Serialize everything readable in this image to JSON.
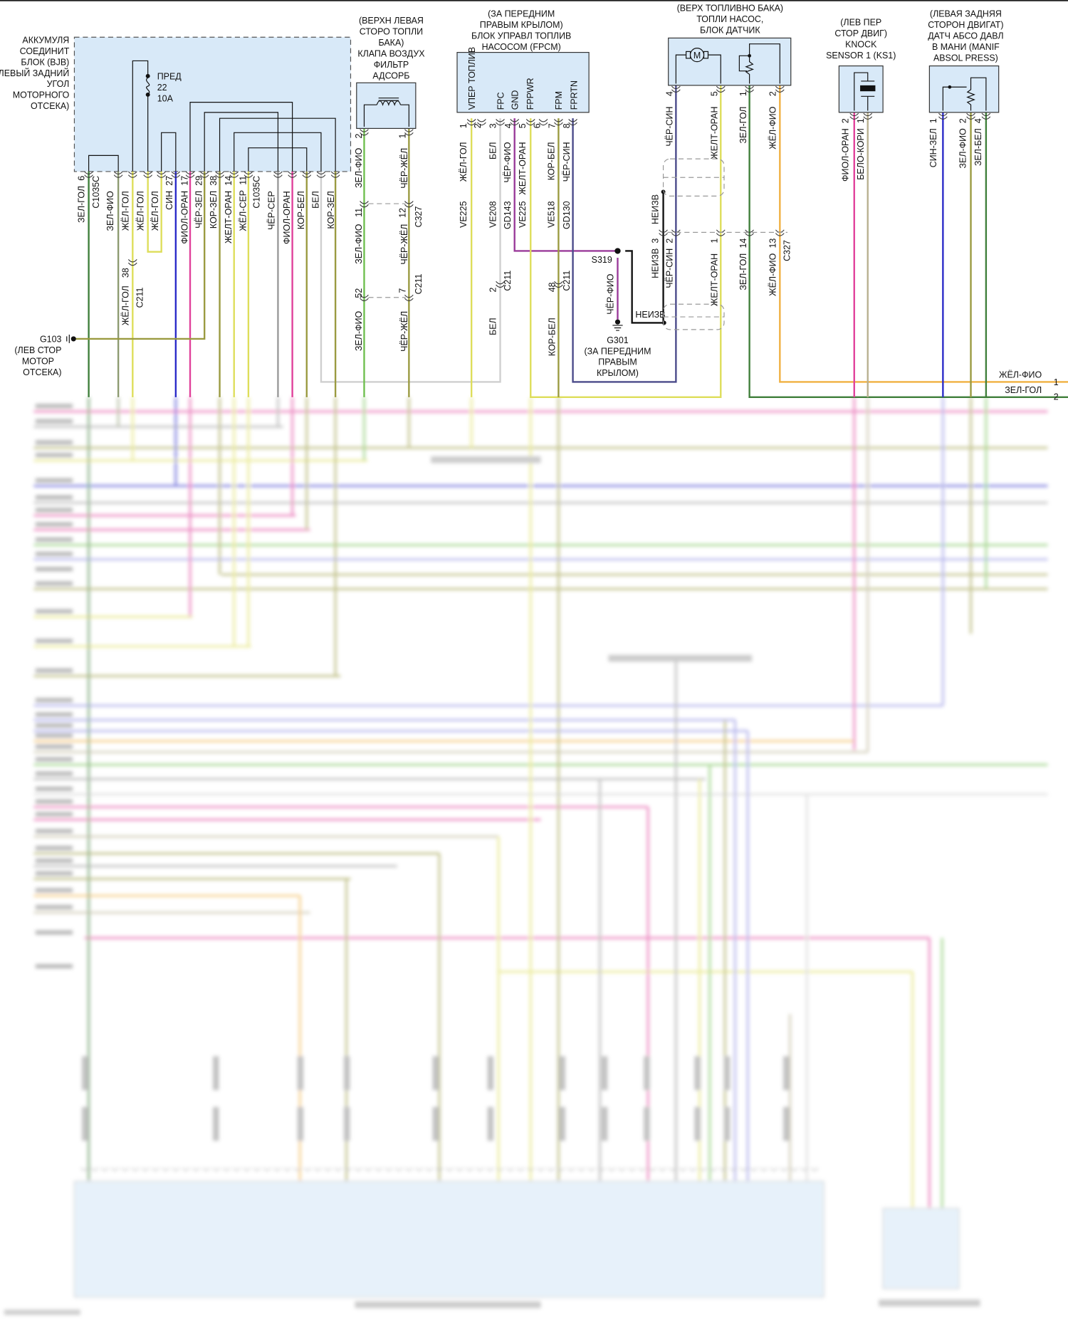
{
  "wire_colors": {
    "green": "#3f7f3a",
    "olivegray": "#8c9a70",
    "yellow": "#dede5a",
    "blue": "#2a2ac8",
    "pink": "#e0409a",
    "olive": "#9a9a40",
    "gray": "#999999",
    "lightgray": "#cfcfcf",
    "purple": "#9a3a9a",
    "darkblue": "#4a4a8a",
    "orange": "#f0b040",
    "tan": "#b8b090",
    "lime": "#6fbf4f",
    "paleblue": "#8a8ae0",
    "black": "#111111"
  },
  "box_fill": "#d8e9f8",
  "bjb": {
    "title_lines": [
      "АККУМУЛЯ",
      "СОЕДИНИТ",
      "БЛОК (BJB)",
      "(ЛЕВЫЙ ЗАДНИЙ",
      "УГОЛ",
      "МОТОРНОГО",
      "ОТСЕКА)"
    ],
    "fuse": [
      "ПРЕД",
      "22",
      "10A"
    ],
    "wires": [
      {
        "wire": "ЗЕЛ-ГОЛ",
        "pin": "6"
      },
      {
        "wire": "C1035C",
        "pin": ""
      },
      {
        "wire": "ЗЕЛ-ФИО",
        "pin": ""
      },
      {
        "wire": "ЖЁЛ-ГОЛ",
        "pin": ""
      },
      {
        "wire": "ЖЁЛ-ГОЛ",
        "pin": ""
      },
      {
        "wire": "ЖЁЛ-ГОЛ",
        "pin": ""
      },
      {
        "wire": "СИН",
        "pin": "27"
      },
      {
        "wire": "ФИОЛ-ОРАН",
        "pin": "17"
      },
      {
        "wire": "ЧЁР-ЗЕЛ",
        "pin": "29"
      },
      {
        "wire": "КОР-ЗЕЛ",
        "pin": "38"
      },
      {
        "wire": "ЖЕЛТ-ОРАН",
        "pin": "14"
      },
      {
        "wire": "ЖЁЛ-СЕР",
        "pin": "11"
      },
      {
        "wire": "C1035C",
        "pin": ""
      },
      {
        "wire": "ЧЁР-СЕР",
        "pin": ""
      },
      {
        "wire": "ФИОЛ-ОРАН",
        "pin": ""
      },
      {
        "wire": "КОР-БЕЛ",
        "pin": ""
      },
      {
        "wire": "БЕЛ",
        "pin": ""
      },
      {
        "wire": "КОР-ЗЕЛ",
        "pin": ""
      }
    ],
    "c211": {
      "pin": "38",
      "connector": "C211",
      "wire": "ЖЁЛ-ГОЛ"
    }
  },
  "g103": {
    "lines": [
      "G103",
      "(ЛЕВ СТОР",
      "МОТОР",
      "ОТСЕКА)"
    ]
  },
  "vent_valve": {
    "title_lines": [
      "(ВЕРХН ЛЕВАЯ",
      "СТОРО ТОПЛИ",
      "БАКА)",
      "КЛАПА ВОЗДУХ",
      "ФИЛЬТР",
      "АДСОРБ"
    ],
    "left": [
      {
        "pin": "2",
        "wire": "ЗЕЛ-ФИО"
      },
      {
        "pin": "11",
        "wire": "ЗЕЛ-ФИО"
      },
      {
        "pin": "52",
        "wire": "ЗЕЛ-ФИО"
      }
    ],
    "right": [
      {
        "pin": "1",
        "wire": "ЧЁР-ЖЁЛ"
      },
      {
        "pin": "12",
        "wire": "ЧЁР-ЖЁЛ"
      },
      {
        "pin": "7",
        "wire": "ЧЁР-ЖЁЛ"
      }
    ],
    "connectors": [
      "C327",
      "C211"
    ]
  },
  "fpcm": {
    "title_lines": [
      "(ЗА ПЕРЕДНИМ",
      "ПРАВЫМ КРЫЛОМ)",
      "БЛОК УПРАВЛ ТОПЛИВ",
      "НАСОСОМ (FPCM)"
    ],
    "pin_names": [
      "VПЕР ТОПЛИВ",
      "FPC",
      "GND",
      "FPPWR",
      "FPM",
      "FPRTN"
    ],
    "pins": [
      "1",
      "2",
      "3",
      "4",
      "5",
      "6",
      "7",
      "8"
    ],
    "wires": [
      "ЖЁЛ-ГОЛ",
      "БЕЛ",
      "ЧЁР-ФИО",
      "ЖЕЛТ-ОРАН",
      "КОР-БЕЛ",
      "ЧЁР-СИН"
    ],
    "circuits": [
      "VE225",
      "VE208",
      "GD143",
      "VE225",
      "VE518",
      "GD130"
    ],
    "c211_a": {
      "pin": "2",
      "connector": "C211",
      "wire": "БЕЛ"
    },
    "c211_b": {
      "pin": "48",
      "connector": "C211",
      "wire": "КОР-БЕЛ"
    }
  },
  "s319": {
    "label": "S319",
    "wire": "ЧЁР-ФИО"
  },
  "g301": {
    "lines": [
      "G301",
      "(ЗА ПЕРЕДНИМ",
      "ПРАВЫМ",
      "КРЫЛОМ)"
    ]
  },
  "unknown_label": "НЕИЗВ",
  "fuel_pump": {
    "title_lines": [
      "(ВЕРХ ТОПЛИВНО БАКА)",
      "ТОПЛИ НАСОС,",
      "БЛОК ДАТЧИК"
    ],
    "motor": "M",
    "upper": [
      {
        "pin": "4",
        "wire": "ЧЁР-СИН"
      },
      {
        "pin": "5",
        "wire": "ЖЕЛТ-ОРАН"
      },
      {
        "pin": "1",
        "wire": "ЗЕЛ-ГОЛ"
      },
      {
        "pin": "2",
        "wire": "ЖЁЛ-ФИО"
      }
    ],
    "lower": [
      {
        "pin": "3",
        "wire": "НЕИЗВ"
      },
      {
        "pin": "2",
        "wire": "ЧЁР-СИН"
      },
      {
        "pin": "1",
        "wire": "ЖЕЛТ-ОРАН"
      },
      {
        "pin": "14",
        "wire": "ЗЕЛ-ГОЛ"
      },
      {
        "pin": "13",
        "wire": "ЖЁЛ-ФИО"
      }
    ],
    "connector": "C327"
  },
  "knock_sensor": {
    "title_lines": [
      "(ЛЕВ ПЕР",
      "СТОР ДВИГ)",
      "KNOCK",
      "SENSOR 1 (KS1)"
    ],
    "wires": [
      {
        "pin": "2",
        "wire": "ФИОЛ-ОРАН"
      },
      {
        "pin": "1",
        "wire": "БЕЛО-КОРИ"
      }
    ]
  },
  "map_sensor": {
    "title_lines": [
      "(ЛЕВАЯ ЗАДНЯЯ",
      "СТОРОН ДВИГАТ)",
      "ДАТЧ АБСО ДАВЛ",
      "В МАНИ (MANIF",
      "ABSOL PRESS)"
    ],
    "wires": [
      {
        "pin": "1",
        "wire": "СИН-ЗЕЛ"
      },
      {
        "pin": "2",
        "wire": "ЗЕЛ-ФИО"
      },
      {
        "pin": "4",
        "wire": "ЗЕЛ-БЕЛ"
      }
    ]
  },
  "right_edge": [
    {
      "wire": "ЖЁЛ-ФИО",
      "pin": "1"
    },
    {
      "wire": "ЗЕЛ-ГОЛ",
      "pin": "2"
    }
  ]
}
